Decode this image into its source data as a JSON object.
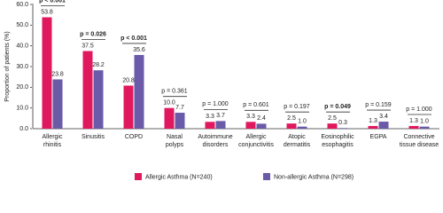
{
  "chart_data": {
    "type": "bar",
    "y_label": "Proportion of patients (%)",
    "categories": [
      [
        "Allergic",
        "rhinitis"
      ],
      [
        "Sinusitis"
      ],
      [
        "COPD"
      ],
      [
        "Nasal",
        "polyps"
      ],
      [
        "Autoimmune",
        "disorders"
      ],
      [
        "Allergic",
        "conjunctivitis"
      ],
      [
        "Atopic",
        "dermatitis"
      ],
      [
        "Eosinophilic",
        "esophagitis"
      ],
      [
        "EGPA"
      ],
      [
        "Connective",
        "tissue disease"
      ]
    ],
    "series": [
      {
        "name": "Allergic Asthma (N=240)",
        "color": "#e0195f",
        "values": [
          53.8,
          37.5,
          20.8,
          10.0,
          3.3,
          3.3,
          2.5,
          2.5,
          1.3,
          1.3
        ],
        "value_labels": [
          "53.8",
          "37.5",
          "20.8",
          "10.0",
          "3.3",
          "3.3",
          "2.5",
          "2.5",
          "1.3",
          "1.3"
        ]
      },
      {
        "name": "Non-allergic Asthma (N=298)",
        "color": "#6a5aa8",
        "values": [
          23.8,
          28.2,
          35.6,
          7.7,
          3.7,
          2.4,
          1.0,
          0.3,
          3.4,
          1.0
        ],
        "value_labels": [
          "23.8",
          "28.2",
          "35.6",
          "7.7",
          "3.7",
          "2.4",
          "1.0",
          "0.3",
          "3.4",
          "1.0"
        ]
      }
    ],
    "p_values": [
      "p < 0.001",
      "p = 0.026",
      "p < 0.001",
      "p = 0.361",
      "p = 1.000",
      "p = 0.601",
      "p = 0.197",
      "p = 0.049",
      "p = 0.159",
      "p = 1.000"
    ],
    "significant": [
      true,
      true,
      true,
      false,
      false,
      false,
      false,
      true,
      false,
      false
    ],
    "ylim": [
      0,
      60
    ],
    "yticks": [
      {
        "value": 0,
        "label": "0.0"
      },
      {
        "value": 10,
        "label": "10.0"
      },
      {
        "value": 20,
        "label": "20.0"
      },
      {
        "value": 30,
        "label": "30.0"
      },
      {
        "value": 40,
        "label": "40.0"
      },
      {
        "value": 50,
        "label": "50.0"
      },
      {
        "value": 60,
        "label": "60.0"
      }
    ],
    "grid": false,
    "legend": "bottom"
  }
}
